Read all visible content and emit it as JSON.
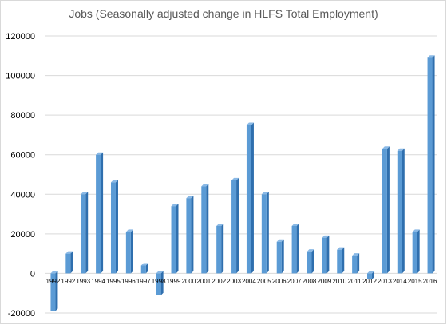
{
  "chart_data": {
    "type": "bar",
    "title": "Jobs (Seasonally adjusted change in HLFS Total Employment)",
    "xlabel": "",
    "ylabel": "",
    "ylim": [
      -20000,
      120000
    ],
    "yticks": [
      -20000,
      0,
      20000,
      40000,
      60000,
      80000,
      100000,
      120000
    ],
    "grid": true,
    "legend": "none",
    "categories": [
      "1992",
      "1992",
      "1993",
      "1994",
      "1995",
      "1996",
      "1997",
      "1998",
      "1999",
      "2000",
      "2001",
      "2002",
      "2003",
      "2004",
      "2005",
      "2006",
      "2007",
      "2008",
      "2009",
      "2010",
      "2011",
      "2012",
      "2013",
      "2014",
      "2015",
      "2016"
    ],
    "values": [
      -19000,
      10000,
      40000,
      60000,
      46000,
      21000,
      4000,
      -11000,
      34000,
      38000,
      44000,
      24000,
      47000,
      75000,
      40000,
      16000,
      24000,
      11000,
      18000,
      12000,
      9000,
      -3000,
      63000,
      62000,
      21000,
      109000
    ],
    "colors": {
      "bar_front": "#5b9bd5",
      "bar_side": "#2f6fae",
      "bar_top": "#8ab9e6",
      "grid": "#d9d9d9"
    }
  }
}
